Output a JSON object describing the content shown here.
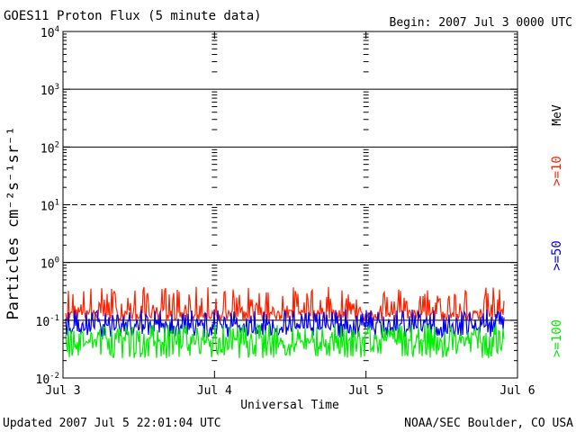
{
  "chart_data": {
    "type": "line",
    "title": "GOES11 Proton Flux (5 minute data)",
    "begin_label": "Begin: 2007 Jul 3 0000 UTC",
    "xlabel": "Universal Time",
    "ylabel": "Particles cm⁻²s⁻¹sr⁻¹",
    "y_scale": "log",
    "ylim": [
      0.01,
      10000
    ],
    "y_ticks": [
      {
        "value": 10000,
        "base": "10",
        "exp": "4"
      },
      {
        "value": 1000,
        "base": "10",
        "exp": "3"
      },
      {
        "value": 100,
        "base": "10",
        "exp": "2"
      },
      {
        "value": 10,
        "base": "10",
        "exp": "1"
      },
      {
        "value": 1,
        "base": "10",
        "exp": "0"
      },
      {
        "value": 0.1,
        "base": "10",
        "exp": "-1"
      },
      {
        "value": 0.01,
        "base": "10",
        "exp": "-2"
      }
    ],
    "horizontal_lines": [
      {
        "value": 1000,
        "style": "solid"
      },
      {
        "value": 100,
        "style": "solid"
      },
      {
        "value": 10,
        "style": "dashed"
      },
      {
        "value": 1,
        "style": "solid"
      },
      {
        "value": 0.1,
        "style": "solid"
      }
    ],
    "x_start": "2007-07-03T00:00",
    "x_end": "2007-07-06T00:00",
    "x_ticks": [
      {
        "value": "2007-07-03T00:00",
        "label": "Jul 3"
      },
      {
        "value": "2007-07-04T00:00",
        "label": "Jul 4"
      },
      {
        "value": "2007-07-05T00:00",
        "label": "Jul 5"
      },
      {
        "value": "2007-07-06T00:00",
        "label": "Jul 6"
      }
    ],
    "data_end": "2007-07-05T22:00",
    "unit_label": "MeV",
    "series": [
      {
        "name": ">=10",
        "color": "#ff2200",
        "baseline": 0.15,
        "min": 0.1,
        "max": 0.5
      },
      {
        "name": ">=50",
        "color": "#0000ee",
        "baseline": 0.09,
        "min": 0.05,
        "max": 0.18
      },
      {
        "name": ">=100",
        "color": "#00ee00",
        "baseline": 0.05,
        "min": 0.022,
        "max": 0.1
      }
    ]
  },
  "footer": {
    "updated": "Updated 2007 Jul  5 22:01:04 UTC",
    "source": "NOAA/SEC Boulder, CO USA"
  }
}
